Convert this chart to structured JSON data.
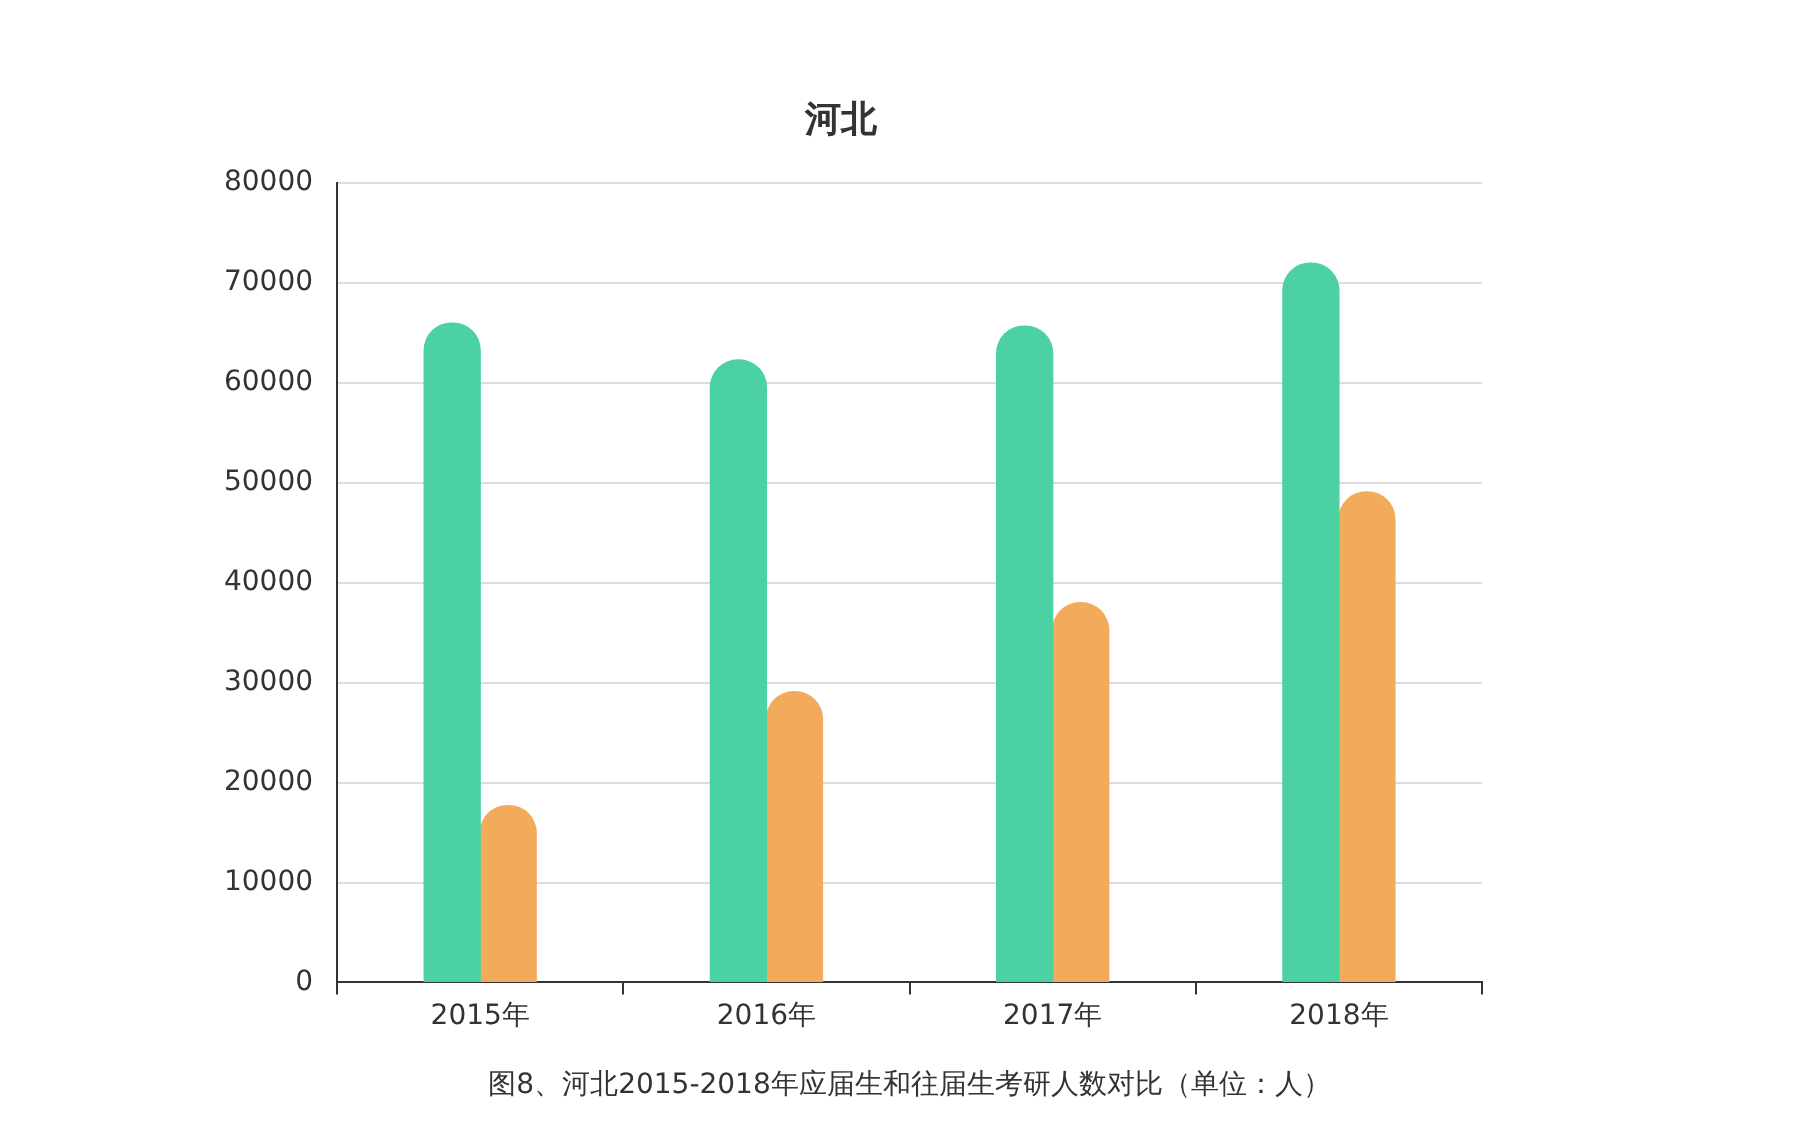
{
  "chart_data": {
    "type": "bar",
    "title": "河北",
    "categories": [
      "2015年",
      "2016年",
      "2017年",
      "2018年"
    ],
    "series": [
      {
        "color": "#4cd1a2",
        "values": [
          66000,
          62300,
          65700,
          72000
        ]
      },
      {
        "color": "#f2ab5b",
        "values": [
          17700,
          29100,
          38000,
          49100
        ]
      }
    ],
    "ylim": [
      0,
      80000
    ],
    "yticks": [
      0,
      10000,
      20000,
      30000,
      40000,
      50000,
      60000,
      70000,
      80000
    ],
    "grid": "y",
    "legend": false,
    "annotations": [
      "图8、河北2015-2018年应届生和往届生考研人数对比（单位：人）"
    ]
  }
}
